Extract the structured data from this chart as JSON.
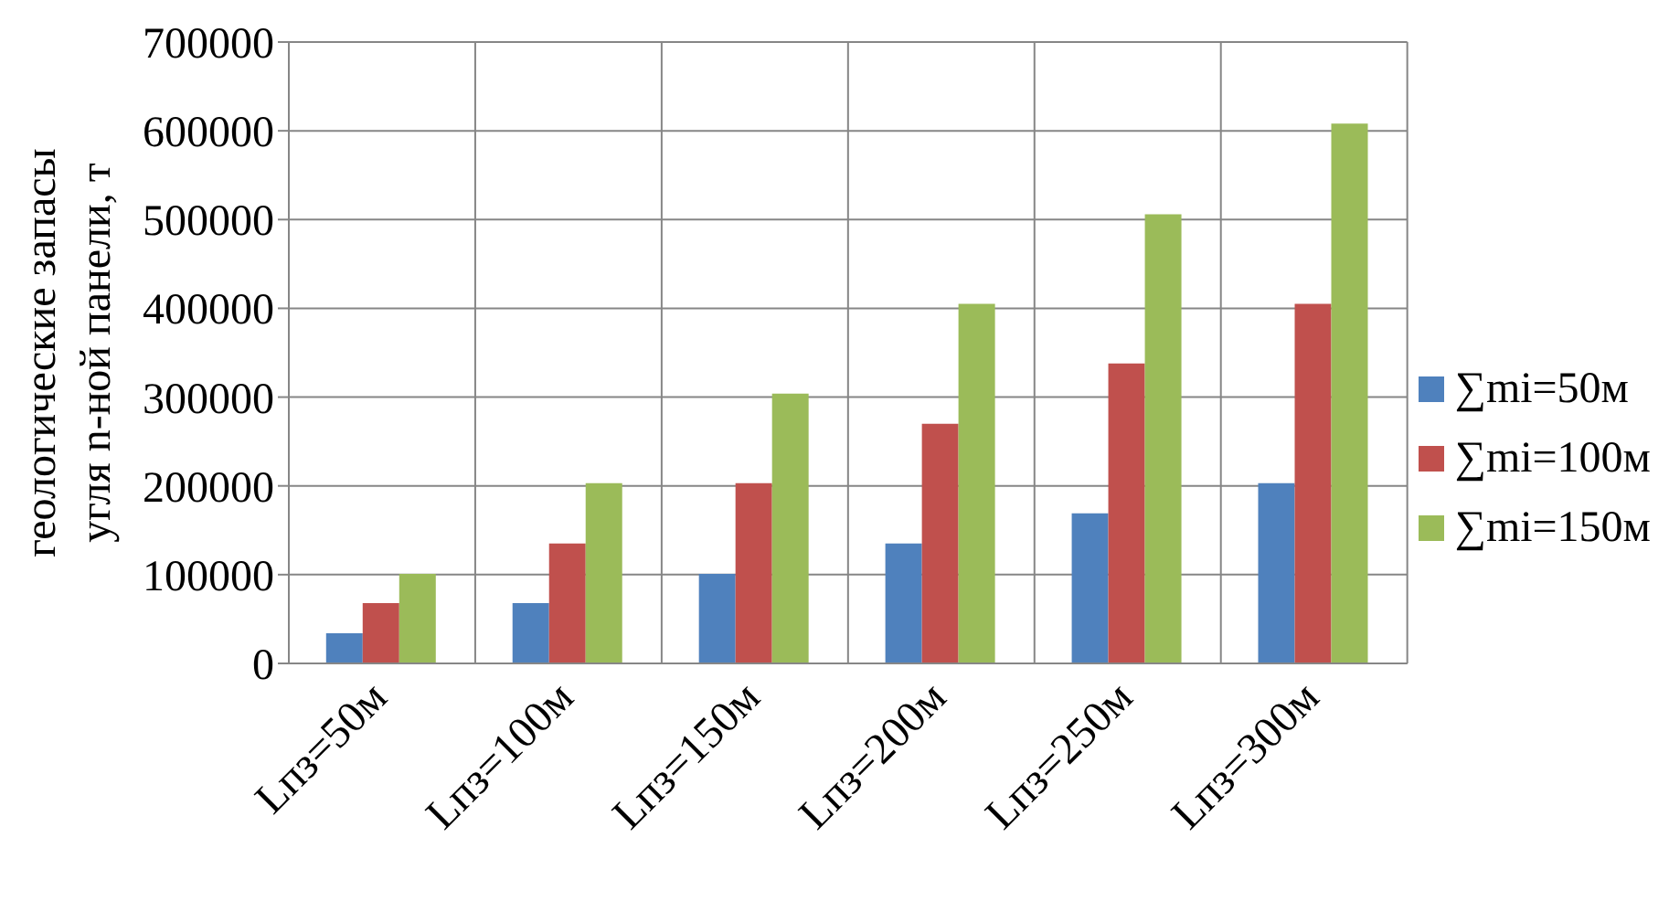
{
  "chart_data": {
    "type": "bar",
    "ylabel": "геологические запасы\nугля n-ной  панели, т",
    "categories": [
      "Lпз=50м",
      "Lпз=100м",
      "Lпз=150м",
      "Lпз=200м",
      "Lпз=250м",
      "Lпз=300м"
    ],
    "series": [
      {
        "name": "∑mi=50м",
        "color": "#4f81bd",
        "values": [
          34000,
          68000,
          101000,
          135000,
          169000,
          203000
        ]
      },
      {
        "name": "∑mi=100м",
        "color": "#c0504d",
        "values": [
          68000,
          135000,
          203000,
          270000,
          338000,
          405000
        ]
      },
      {
        "name": "∑mi=150м",
        "color": "#9bbb59",
        "values": [
          101000,
          203000,
          304000,
          405000,
          506000,
          608000
        ]
      }
    ],
    "ylim": [
      0,
      700000
    ],
    "yticks": [
      0,
      100000,
      200000,
      300000,
      400000,
      500000,
      600000,
      700000
    ],
    "grid": true,
    "legend": "right"
  }
}
